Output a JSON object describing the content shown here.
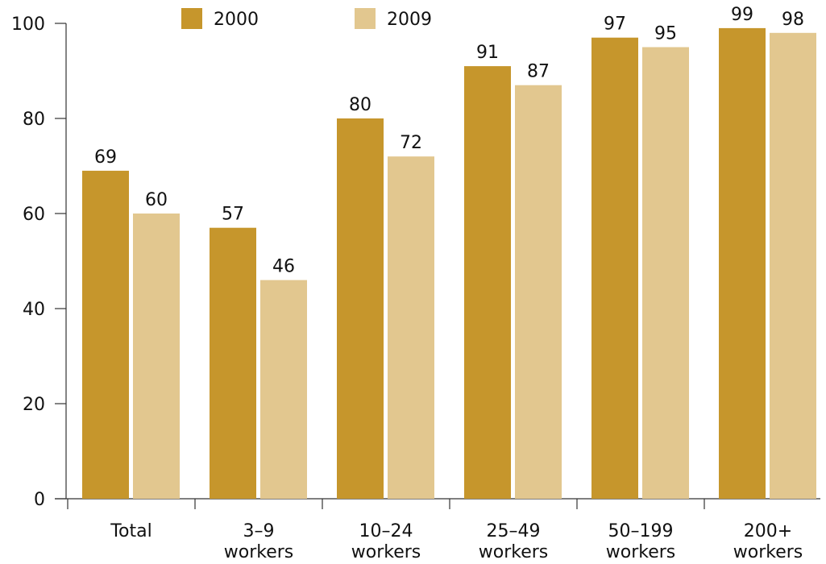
{
  "chart_data": {
    "type": "bar",
    "categories": [
      [
        "Total"
      ],
      [
        "3–9",
        "workers"
      ],
      [
        "10–24",
        "workers"
      ],
      [
        "25–49",
        "workers"
      ],
      [
        "50–199",
        "workers"
      ],
      [
        "200+",
        "workers"
      ]
    ],
    "series": [
      {
        "name": "2000",
        "color": "#c6962c",
        "values": [
          69,
          57,
          80,
          91,
          97,
          99
        ]
      },
      {
        "name": "2009",
        "color": "#e2c78f",
        "values": [
          60,
          46,
          72,
          87,
          95,
          98
        ]
      }
    ],
    "ylim": [
      0,
      100
    ],
    "yticks": [
      "0",
      "20",
      "40",
      "60",
      "80",
      "100"
    ],
    "grid": false,
    "legend_position": "top",
    "show_data_labels": true
  }
}
